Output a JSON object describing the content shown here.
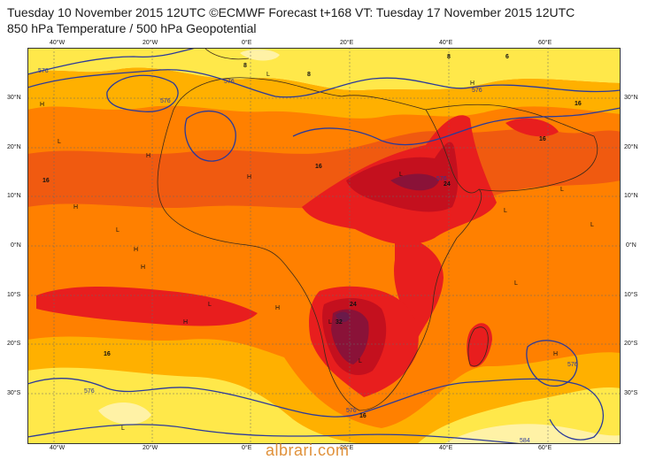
{
  "header": {
    "line1": "Tuesday 10 November 2015 12UTC ©ECMWF Forecast t+168 VT: Tuesday 17 November 2015 12UTC",
    "line2": "850 hPa Temperature / 500 hPa Geopotential"
  },
  "axes": {
    "lon": [
      "40°W",
      "20°W",
      "0°E",
      "20°E",
      "40°E",
      "60°E"
    ],
    "lat": [
      "30°N",
      "20°N",
      "10°N",
      "0°N",
      "10°S",
      "20°S",
      "30°S"
    ]
  },
  "map": {
    "temp_labels": [
      "8",
      "8",
      "8",
      "6",
      "16",
      "16",
      "16",
      "16",
      "16",
      "16",
      "24",
      "24",
      "32"
    ],
    "geo_labels": [
      "576",
      "576",
      "576",
      "576",
      "576",
      "576",
      "576",
      "584",
      "576"
    ],
    "pressure_marks": [
      "H",
      "H",
      "H",
      "H",
      "H",
      "H",
      "H",
      "H",
      "H",
      "H",
      "L",
      "L",
      "L",
      "L",
      "L",
      "L",
      "L",
      "L",
      "L",
      "L",
      "L",
      "L"
    ],
    "colors": {
      "pale": "#fff2a6",
      "yellow": "#ffe84a",
      "orange_light": "#ffb000",
      "orange": "#ff8000",
      "orange_dark": "#f05a10",
      "red": "#e81e1e",
      "red_dark": "#c4101e",
      "maroon": "#8a1238",
      "purple": "#6a1a4a",
      "contour": "#2b3a9a",
      "coast": "#3a2a1a"
    }
  },
  "watermark": "albrari.com"
}
